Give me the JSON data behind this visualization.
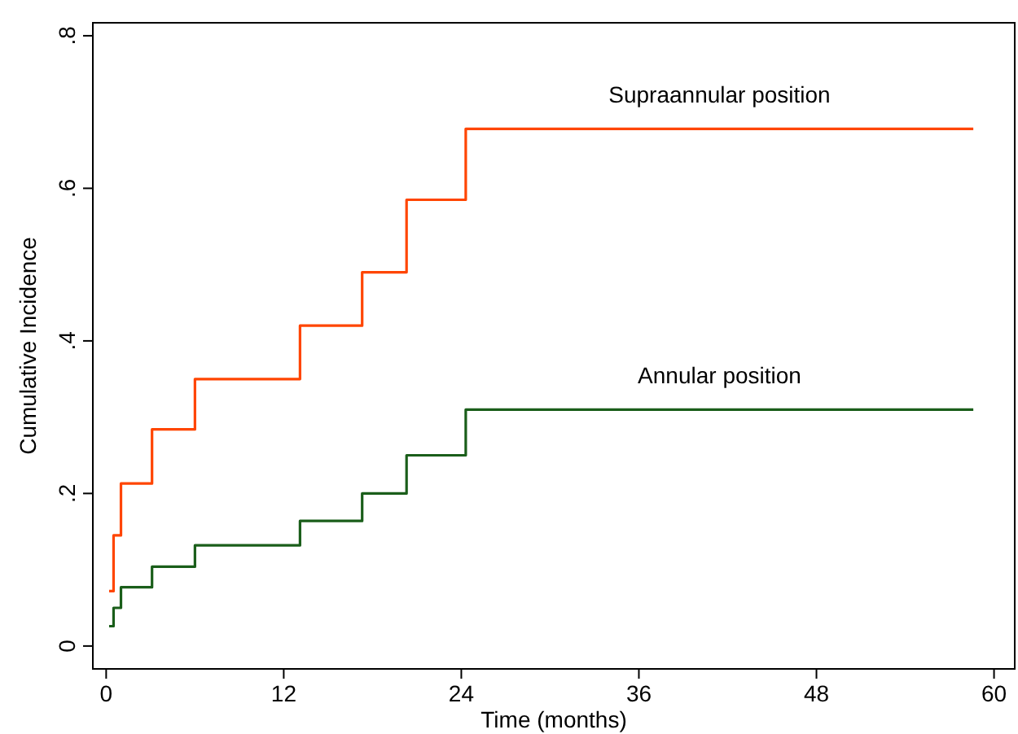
{
  "chart_data": {
    "type": "step",
    "xlabel": "Time (months)",
    "ylabel": "Cumulative Incidence",
    "xlim": [
      -0.9,
      61.4
    ],
    "ylim": [
      -0.03,
      0.817
    ],
    "xticks": [
      0,
      12,
      24,
      36,
      48,
      60
    ],
    "yticks": [
      {
        "value": 0,
        "label": "0"
      },
      {
        "value": 0.2,
        "label": ".2"
      },
      {
        "value": 0.4,
        "label": ".4"
      },
      {
        "value": 0.6,
        "label": ".6"
      },
      {
        "value": 0.8,
        "label": ".8"
      }
    ],
    "grid": false,
    "series": [
      {
        "name": "Supraannular position",
        "color": "#ff4500",
        "x": [
          0.2,
          0.5,
          1,
          3.1,
          6,
          13.1,
          17.3,
          20.3,
          24.3,
          58.6
        ],
        "values": [
          0.072,
          0.145,
          0.213,
          0.284,
          0.35,
          0.42,
          0.49,
          0.585,
          0.678,
          0.678
        ]
      },
      {
        "name": "Annular position",
        "color": "#1a5e1a",
        "x": [
          0.2,
          0.5,
          1,
          3.1,
          6,
          13.1,
          17.3,
          20.3,
          24.3,
          58.6
        ],
        "values": [
          0.026,
          0.05,
          0.077,
          0.104,
          0.132,
          0.164,
          0.2,
          0.25,
          0.31,
          0.31
        ]
      }
    ]
  }
}
